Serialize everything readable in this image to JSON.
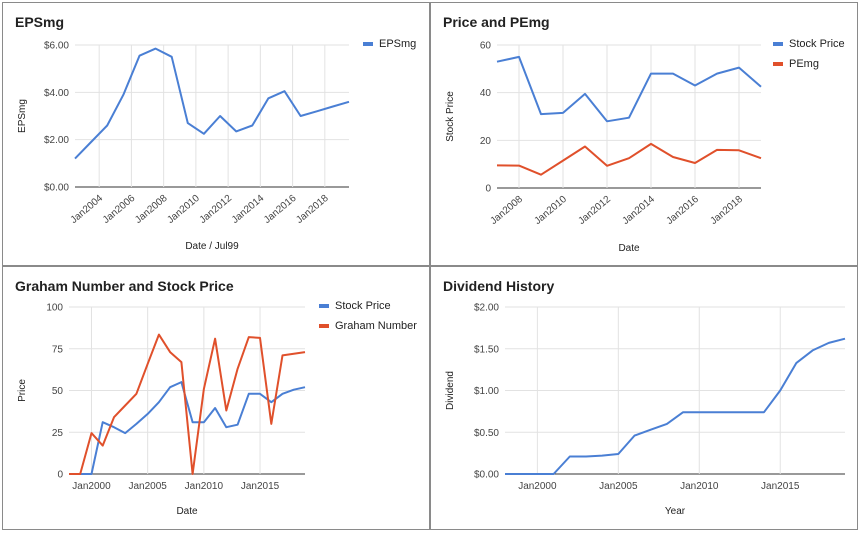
{
  "chart_data": [
    {
      "type": "line",
      "title": "EPSmg",
      "xlabel": "Date / Jul99",
      "ylabel": "EPSmg",
      "xticks": [
        "Jan2004",
        "Jan2006",
        "Jan2008",
        "Jan2010",
        "Jan2012",
        "Jan2014",
        "Jan2016",
        "Jan2018"
      ],
      "yticks": [
        "$0.00",
        "$2.00",
        "$4.00",
        "$6.00"
      ],
      "xlim": [
        2002.5,
        2019.5
      ],
      "ylim": [
        0,
        6
      ],
      "legend": "right",
      "series": [
        {
          "name": "EPSmg",
          "color": "#4a7fd4",
          "x": [
            2002.5,
            2003.5,
            2004.5,
            2005.5,
            2006.5,
            2007.5,
            2008.5,
            2009.5,
            2010.5,
            2011.5,
            2012.5,
            2013.5,
            2014.5,
            2015.5,
            2016.5,
            2017.5,
            2018.5,
            2019.5
          ],
          "y": [
            1.2,
            1.9,
            2.6,
            3.9,
            5.55,
            5.85,
            5.5,
            2.7,
            2.25,
            3.0,
            2.35,
            2.6,
            3.75,
            4.05,
            3.0,
            3.2,
            3.4,
            3.6
          ]
        }
      ]
    },
    {
      "type": "line",
      "title": "Price and PEmg",
      "xlabel": "Date",
      "ylabel": "Stock Price",
      "xticks": [
        "Jan2008",
        "Jan2010",
        "Jan2012",
        "Jan2014",
        "Jan2016",
        "Jan2018"
      ],
      "yticks": [
        "0",
        "20",
        "40",
        "60"
      ],
      "xlim": [
        2007,
        2019
      ],
      "ylim": [
        0,
        60
      ],
      "legend": "right",
      "series": [
        {
          "name": "Stock Price",
          "color": "#4a7fd4",
          "x": [
            2007,
            2008,
            2009,
            2010,
            2011,
            2012,
            2013,
            2014,
            2015,
            2016,
            2017,
            2018,
            2019
          ],
          "y": [
            53,
            55,
            31,
            31.5,
            39.5,
            28,
            29.5,
            48,
            48,
            43,
            48,
            50.5,
            42.5
          ]
        },
        {
          "name": "PEmg",
          "color": "#e0502b",
          "x": [
            2007,
            2008,
            2009,
            2010,
            2011,
            2012,
            2013,
            2014,
            2015,
            2016,
            2017,
            2018,
            2019
          ],
          "y": [
            9.5,
            9.4,
            5.6,
            11.5,
            17.4,
            9.3,
            12.5,
            18.5,
            13,
            10.5,
            16,
            15.8,
            12.5
          ]
        }
      ]
    },
    {
      "type": "line",
      "title": "Graham Number and Stock Price",
      "xlabel": "Date",
      "ylabel": "Price",
      "xticks": [
        "Jan2000",
        "Jan2005",
        "Jan2010",
        "Jan2015"
      ],
      "yticks": [
        "0",
        "25",
        "50",
        "75",
        "100"
      ],
      "xlim": [
        1998,
        2019
      ],
      "ylim": [
        0,
        100
      ],
      "legend": "right",
      "series": [
        {
          "name": "Stock Price",
          "color": "#4a7fd4",
          "x": [
            1998,
            1999,
            2000,
            2001,
            2002,
            2003,
            2004,
            2005,
            2006,
            2007,
            2008,
            2009,
            2010,
            2011,
            2012,
            2013,
            2014,
            2015,
            2016,
            2017,
            2018,
            2019
          ],
          "y": [
            0,
            0,
            0,
            31,
            28,
            24.5,
            30,
            36,
            43,
            52,
            55,
            31,
            31,
            39.5,
            28,
            29.5,
            48,
            48,
            43,
            48,
            50.5,
            52
          ]
        },
        {
          "name": "Graham Number",
          "color": "#e0502b",
          "x": [
            1998,
            1999,
            2000,
            2001,
            2002,
            2003,
            2004,
            2005,
            2006,
            2007,
            2008,
            2009,
            2010,
            2011,
            2012,
            2013,
            2014,
            2015,
            2016,
            2017,
            2018,
            2019
          ],
          "y": [
            0,
            0,
            24.5,
            17,
            34,
            41,
            48,
            66,
            83.5,
            73,
            67,
            0,
            51,
            81,
            38,
            63,
            82,
            81.5,
            30,
            71,
            72,
            73
          ]
        }
      ]
    },
    {
      "type": "line",
      "title": "Dividend History",
      "xlabel": "Year",
      "ylabel": "Dividend",
      "xticks": [
        "Jan2000",
        "Jan2005",
        "Jan2010",
        "Jan2015"
      ],
      "yticks": [
        "$0.00",
        "$0.50",
        "$1.00",
        "$1.50",
        "$2.00"
      ],
      "xlim": [
        1998,
        2019
      ],
      "ylim": [
        0,
        2
      ],
      "legend": "none",
      "series": [
        {
          "name": "",
          "color": "#4a7fd4",
          "x": [
            1998,
            1999,
            2000,
            2001,
            2002,
            2003,
            2004,
            2005,
            2006,
            2007,
            2008,
            2009,
            2010,
            2011,
            2012,
            2013,
            2014,
            2015,
            2016,
            2017,
            2018,
            2019
          ],
          "y": [
            0,
            0,
            0,
            0,
            0.21,
            0.21,
            0.22,
            0.24,
            0.46,
            0.53,
            0.6,
            0.74,
            0.74,
            0.74,
            0.74,
            0.74,
            0.74,
            1.0,
            1.33,
            1.48,
            1.57,
            1.62
          ]
        }
      ]
    }
  ]
}
